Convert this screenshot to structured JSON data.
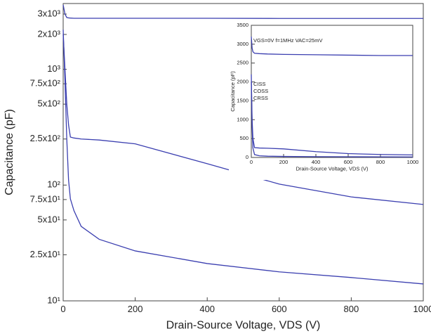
{
  "chart_data": [
    {
      "type": "line",
      "x_label": "Drain-Source Voltage, VDS (V)",
      "y_label": "Capacitance (pF)",
      "x": [
        0,
        5,
        10,
        15,
        20,
        30,
        50,
        100,
        200,
        400,
        600,
        800,
        1000
      ],
      "series": [
        {
          "name": "CISS",
          "color": "#3b3fb0",
          "values": [
            3600,
            3000,
            2800,
            2780,
            2770,
            2760,
            2760,
            2760,
            2760,
            2760,
            2750,
            2750,
            2750
          ]
        },
        {
          "name": "COSS",
          "color": "#3b3fb0",
          "values": [
            2000,
            1000,
            500,
            330,
            260,
            255,
            250,
            245,
            227,
            153,
            102,
            79,
            68
          ]
        },
        {
          "name": "CRSS",
          "color": "#3b3fb0",
          "values": [
            2200,
            800,
            250,
            110,
            76,
            60,
            44,
            34,
            27,
            21,
            17.8,
            15.9,
            14
          ]
        }
      ],
      "xlim": [
        0,
        1000
      ],
      "xticks": [
        0,
        200,
        400,
        600,
        800,
        1000
      ],
      "ylim": [
        10,
        3700
      ],
      "log_y": true,
      "yticks": [
        {
          "value": 10,
          "label": "10¹"
        },
        {
          "value": 25,
          "label": "2.5x10¹"
        },
        {
          "value": 50,
          "label": "5x10¹"
        },
        {
          "value": 75,
          "label": "7.5x10¹"
        },
        {
          "value": 100,
          "label": "10²"
        },
        {
          "value": 250,
          "label": "2.5x10²"
        },
        {
          "value": 500,
          "label": "5x10²"
        },
        {
          "value": 750,
          "label": "7.5x10²"
        },
        {
          "value": 1000,
          "label": "10³"
        },
        {
          "value": 2000,
          "label": "2x10³"
        },
        {
          "value": 3000,
          "label": "3x10³"
        }
      ]
    },
    {
      "type": "line",
      "x_label": "Drain-Source Voltage, VDS (V)",
      "y_label": "Capacitance (pF)",
      "annotation": "VGS=0V f=1MHz VAC=25mV",
      "x": [
        0,
        5,
        10,
        20,
        50,
        100,
        200,
        400,
        600,
        800,
        1000
      ],
      "series": [
        {
          "name": "CISS",
          "color": "#3b3fb0",
          "values": [
            3200,
            2900,
            2800,
            2760,
            2750,
            2740,
            2730,
            2720,
            2710,
            2700,
            2700
          ]
        },
        {
          "name": "COSS",
          "color": "#3b3fb0",
          "values": [
            2000,
            1000,
            500,
            260,
            250,
            245,
            227,
            153,
            102,
            79,
            68
          ]
        },
        {
          "name": "CRSS",
          "color": "#3b3fb0",
          "values": [
            2200,
            800,
            250,
            76,
            44,
            34,
            27,
            21,
            18,
            16,
            14
          ]
        }
      ],
      "xlim": [
        0,
        1000
      ],
      "xticks": [
        0,
        200,
        400,
        600,
        800,
        1000
      ],
      "ylim": [
        0,
        3500
      ],
      "log_y": false,
      "yticks": [
        0,
        500,
        1000,
        1500,
        2000,
        2500,
        3000,
        3500
      ]
    }
  ]
}
